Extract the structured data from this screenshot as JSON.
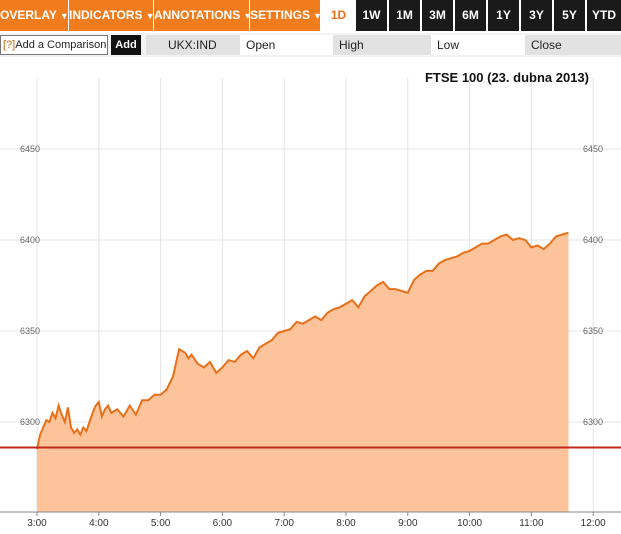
{
  "toolbar": {
    "menus": [
      {
        "label": "OVERLAY"
      },
      {
        "label": "INDICATORS"
      },
      {
        "label": "ANNOTATIONS"
      },
      {
        "label": "SETTINGS"
      }
    ],
    "ranges": [
      "1D",
      "1W",
      "1M",
      "3M",
      "6M",
      "1Y",
      "3Y",
      "5Y",
      "YTD"
    ],
    "active_range": "1D"
  },
  "comparison": {
    "help": "[?]",
    "label": "Add a Comparison",
    "add_label": "Add"
  },
  "quote": {
    "symbol": "UKX:IND",
    "open_label": "Open",
    "high_label": "High",
    "low_label": "Low",
    "close_label": "Close"
  },
  "colors": {
    "accent": "#f07c1e",
    "line": "#e8701a",
    "fill": "#fdc49c",
    "reference": "#c0281a",
    "dark": "#1a1a1a"
  },
  "chart_data": {
    "type": "area",
    "title": "FTSE 100 (23. dubna 2013)",
    "x_ticks": [
      "3:00",
      "4:00",
      "5:00",
      "6:00",
      "7:00",
      "8:00",
      "9:00",
      "10:00",
      "11:00",
      "12:00"
    ],
    "y_ticks": [
      6300,
      6350,
      6400,
      6450
    ],
    "xlim": [
      3,
      12.05
    ],
    "ylim": [
      6250,
      6480
    ],
    "reference_line": 6286,
    "grid": true,
    "x": [
      3.0,
      3.05,
      3.1,
      3.15,
      3.2,
      3.25,
      3.3,
      3.35,
      3.4,
      3.45,
      3.5,
      3.55,
      3.6,
      3.65,
      3.7,
      3.75,
      3.8,
      3.85,
      3.9,
      3.95,
      4.0,
      4.05,
      4.1,
      4.15,
      4.2,
      4.3,
      4.4,
      4.5,
      4.6,
      4.7,
      4.8,
      4.9,
      5.0,
      5.1,
      5.2,
      5.3,
      5.4,
      5.45,
      5.5,
      5.6,
      5.7,
      5.8,
      5.9,
      6.0,
      6.1,
      6.2,
      6.3,
      6.4,
      6.5,
      6.6,
      6.7,
      6.8,
      6.9,
      7.0,
      7.1,
      7.2,
      7.3,
      7.4,
      7.5,
      7.6,
      7.7,
      7.8,
      7.9,
      8.0,
      8.1,
      8.2,
      8.3,
      8.4,
      8.5,
      8.6,
      8.7,
      8.8,
      8.9,
      9.0,
      9.1,
      9.2,
      9.3,
      9.4,
      9.5,
      9.6,
      9.7,
      9.8,
      9.9,
      10.0,
      10.1,
      10.2,
      10.3,
      10.4,
      10.5,
      10.6,
      10.7,
      10.8,
      10.9,
      11.0,
      11.1,
      11.2,
      11.3,
      11.4,
      11.5,
      11.6
    ],
    "y": [
      6285,
      6293,
      6297,
      6301,
      6300,
      6305,
      6302,
      6309,
      6304,
      6300,
      6308,
      6297,
      6294,
      6296,
      6293,
      6297,
      6295,
      6300,
      6305,
      6309,
      6311,
      6303,
      6307,
      6309,
      6305,
      6307,
      6303,
      6309,
      6304,
      6312,
      6312,
      6315,
      6315,
      6318,
      6325,
      6340,
      6338,
      6335,
      6337,
      6332,
      6330,
      6333,
      6327,
      6330,
      6334,
      6333,
      6337,
      6339,
      6335,
      6341,
      6343,
      6345,
      6349,
      6350,
      6351,
      6355,
      6354,
      6356,
      6358,
      6356,
      6360,
      6362,
      6363,
      6365,
      6367,
      6363,
      6369,
      6372,
      6375,
      6377,
      6373,
      6373,
      6372,
      6371,
      6378,
      6381,
      6383,
      6383,
      6387,
      6389,
      6390,
      6391,
      6393,
      6394,
      6396,
      6398,
      6398,
      6400,
      6402,
      6403,
      6400,
      6401,
      6400,
      6396,
      6397,
      6395,
      6398,
      6402,
      6403,
      6404
    ]
  }
}
